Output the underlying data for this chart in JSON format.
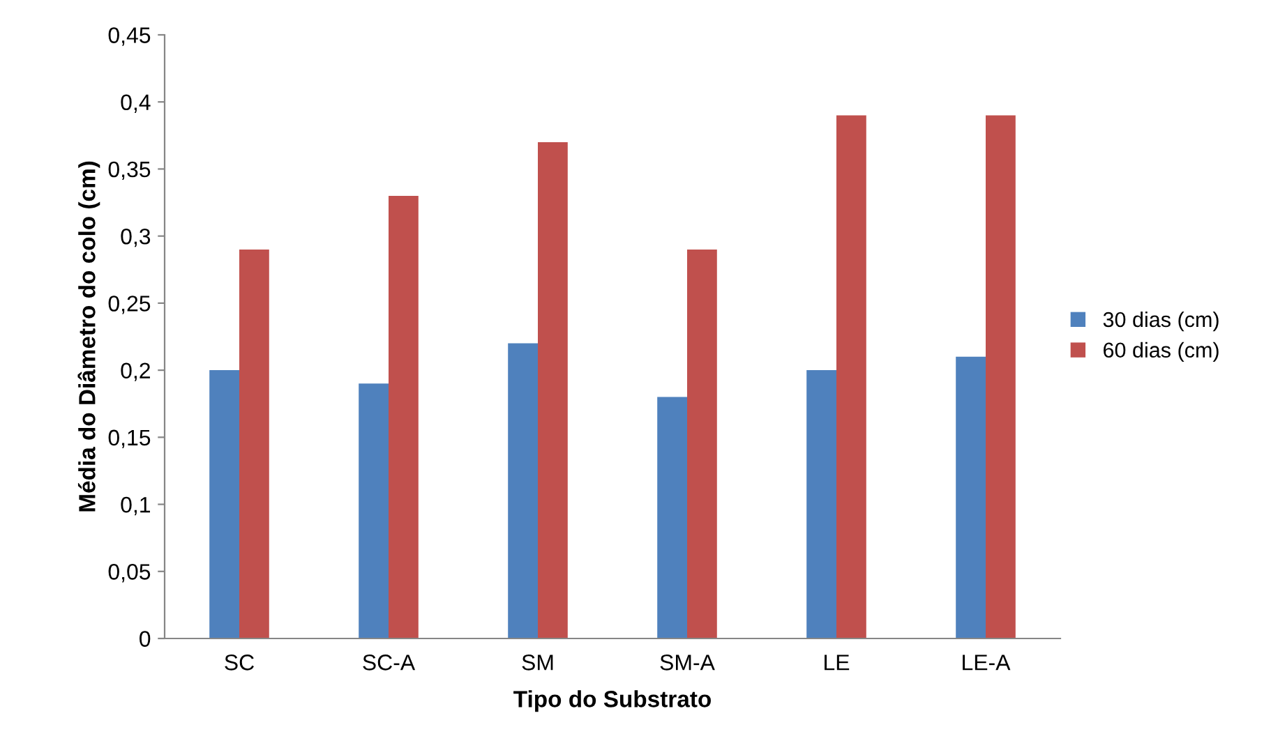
{
  "chart_data": {
    "type": "bar",
    "xlabel": "Tipo do Substrato",
    "ylabel": "Média do Diâmetro do colo (cm)",
    "categories": [
      "SC",
      "SC-A",
      "SM",
      "SM-A",
      "LE",
      "LE-A"
    ],
    "series": [
      {
        "name": "30 dias (cm)",
        "color": "#4f81bd",
        "values": [
          0.2,
          0.19,
          0.22,
          0.18,
          0.2,
          0.21
        ]
      },
      {
        "name": "60 dias (cm)",
        "color": "#c0504d",
        "values": [
          0.29,
          0.33,
          0.37,
          0.29,
          0.39,
          0.39
        ]
      }
    ],
    "ylim": [
      0,
      0.45
    ],
    "yticks": [
      0,
      {
        "value": 0.05,
        "label": "0,05"
      },
      {
        "value": 0.1,
        "label": "0,1"
      },
      {
        "value": 0.15,
        "label": "0,15"
      },
      {
        "value": 0.2,
        "label": "0,2"
      },
      {
        "value": 0.25,
        "label": "0,25"
      },
      {
        "value": 0.3,
        "label": "0,3"
      },
      {
        "value": 0.35,
        "label": "0,35"
      },
      {
        "value": 0.4,
        "label": "0,4"
      },
      {
        "value": 0.45,
        "label": "0,45"
      }
    ],
    "legend": "right"
  }
}
